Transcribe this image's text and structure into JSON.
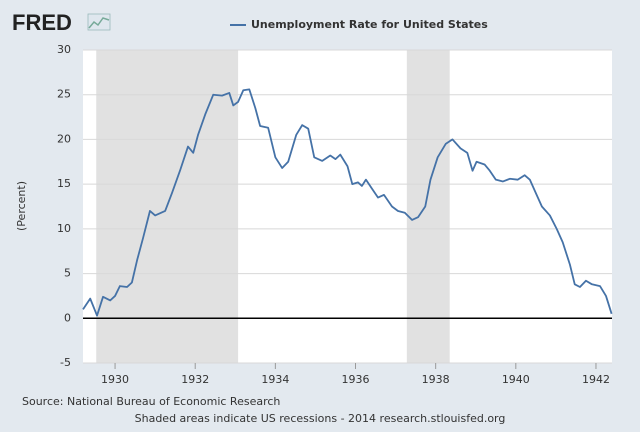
{
  "chart_data": {
    "type": "line",
    "logo": "FRED",
    "ylabel": "(Percent)",
    "source": "Source: National Bureau of Economic Research",
    "note": "Shaded areas indicate US recessions - 2014 research.stlouisfed.org",
    "xlim": [
      1929.2,
      1942.4
    ],
    "ylim": [
      -5,
      30
    ],
    "xticks": [
      1930,
      1932,
      1934,
      1936,
      1938,
      1940,
      1942
    ],
    "yticks": [
      -5,
      0,
      5,
      10,
      15,
      20,
      25,
      30
    ],
    "grid": true,
    "recessions": [
      [
        1929.53,
        1933.07
      ],
      [
        1937.28,
        1938.35
      ]
    ],
    "recession_color": "#e1e1e1",
    "x": [
      1929.2,
      1929.38,
      1929.55,
      1929.7,
      1929.88,
      1930.0,
      1930.12,
      1930.3,
      1930.42,
      1930.55,
      1930.7,
      1930.87,
      1931.0,
      1931.25,
      1931.42,
      1931.62,
      1931.82,
      1931.95,
      1932.07,
      1932.25,
      1932.45,
      1932.67,
      1932.85,
      1932.95,
      1933.07,
      1933.2,
      1933.35,
      1933.5,
      1933.62,
      1933.82,
      1934.0,
      1934.17,
      1934.32,
      1934.52,
      1934.67,
      1934.82,
      1934.97,
      1935.17,
      1935.37,
      1935.5,
      1935.62,
      1935.8,
      1935.92,
      1936.06,
      1936.16,
      1936.26,
      1936.41,
      1936.56,
      1936.71,
      1936.91,
      1937.06,
      1937.23,
      1937.41,
      1937.56,
      1937.74,
      1937.87,
      1938.05,
      1938.25,
      1938.42,
      1938.62,
      1938.79,
      1938.92,
      1939.02,
      1939.22,
      1939.35,
      1939.5,
      1939.68,
      1939.85,
      1940.05,
      1940.22,
      1940.35,
      1940.5,
      1940.65,
      1940.85,
      1941.02,
      1941.17,
      1941.35,
      1941.47,
      1941.6,
      1941.75,
      1941.9,
      1942.1,
      1942.25,
      1942.39
    ],
    "series": [
      {
        "name": "Unemployment Rate for United States",
        "color": "#4572a7",
        "values": [
          1.0,
          2.2,
          0.3,
          2.4,
          2.0,
          2.5,
          3.6,
          3.5,
          4.0,
          6.5,
          9.0,
          12.0,
          11.5,
          12.0,
          14.0,
          16.5,
          19.2,
          18.5,
          20.5,
          22.8,
          25.0,
          24.9,
          25.2,
          23.8,
          24.2,
          25.5,
          25.6,
          23.5,
          21.5,
          21.3,
          18.0,
          16.8,
          17.5,
          20.5,
          21.6,
          21.2,
          18.0,
          17.6,
          18.2,
          17.8,
          18.3,
          17.0,
          15.0,
          15.2,
          14.8,
          15.5,
          14.5,
          13.5,
          13.8,
          12.5,
          12.0,
          11.8,
          11.0,
          11.3,
          12.5,
          15.5,
          18.0,
          19.5,
          20.0,
          19.0,
          18.5,
          16.5,
          17.5,
          17.2,
          16.5,
          15.5,
          15.3,
          15.6,
          15.5,
          16.0,
          15.5,
          14.0,
          12.5,
          11.5,
          10.0,
          8.5,
          6.0,
          3.8,
          3.5,
          4.2,
          3.8,
          3.6,
          2.5,
          0.5
        ]
      }
    ]
  }
}
